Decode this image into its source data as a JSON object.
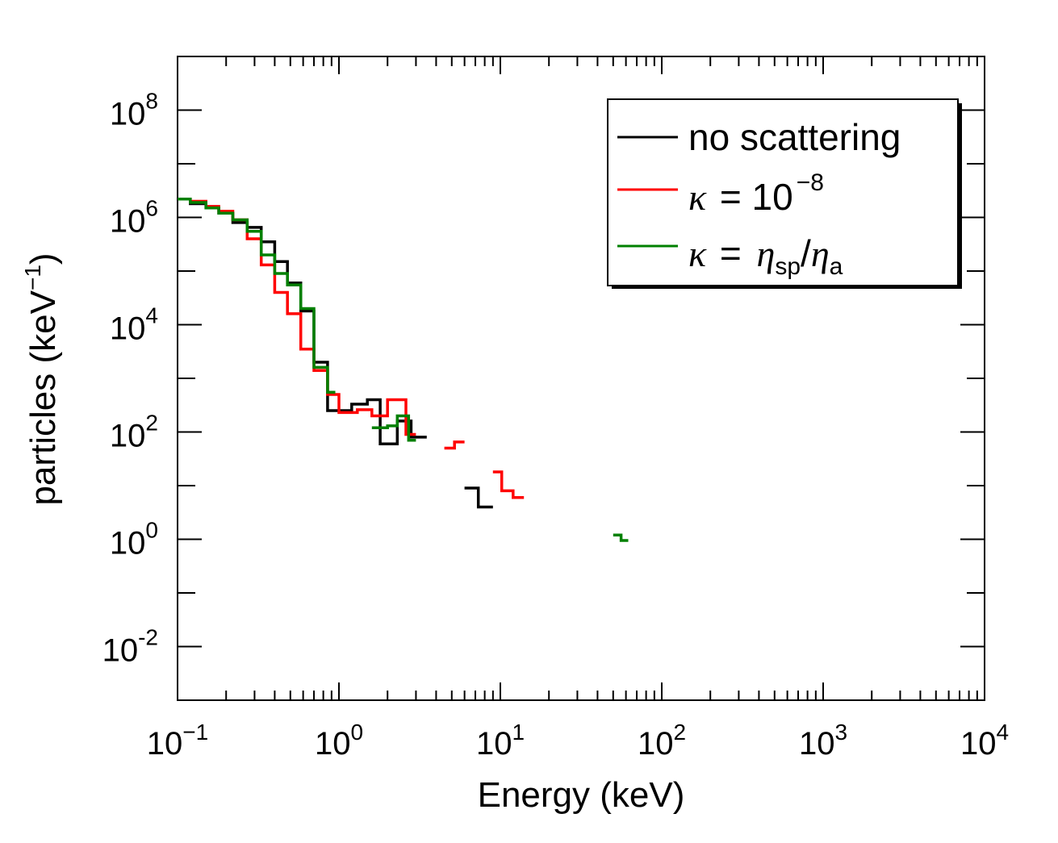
{
  "chart_data": {
    "type": "line",
    "step": true,
    "xscale": "log",
    "yscale": "log",
    "xlim": [
      0.1,
      10000
    ],
    "ylim": [
      0.001,
      1000000000
    ],
    "xlabel": "Energy (keV)",
    "ylabel": "particles (keV",
    "ylabel_exp": "−1",
    "ylabel_close": ")",
    "x_ticks": [
      {
        "base": "10",
        "exp": "−1",
        "value": 0.1
      },
      {
        "base": "10",
        "exp": "0",
        "value": 1
      },
      {
        "base": "10",
        "exp": "1",
        "value": 10
      },
      {
        "base": "10",
        "exp": "2",
        "value": 100
      },
      {
        "base": "10",
        "exp": "3",
        "value": 1000
      },
      {
        "base": "10",
        "exp": "4",
        "value": 10000
      }
    ],
    "y_ticks": [
      {
        "base": "10",
        "exp": "-2",
        "value": 0.01
      },
      {
        "base": "10",
        "exp": "0",
        "value": 1
      },
      {
        "base": "10",
        "exp": "2",
        "value": 100
      },
      {
        "base": "10",
        "exp": "4",
        "value": 10000
      },
      {
        "base": "10",
        "exp": "6",
        "value": 1000000
      },
      {
        "base": "10",
        "exp": "8",
        "value": 100000000
      }
    ],
    "legend": {
      "placement": "top-right",
      "entries": [
        {
          "series": 0,
          "text": "no scattering"
        },
        {
          "series": 1,
          "symbol": "κ",
          "eq": "= 10",
          "exp": "−8"
        },
        {
          "series": 2,
          "symbol": "κ",
          "eq": "=",
          "num": "η",
          "num_sub": "sp",
          "den": "η",
          "den_sub": "a"
        }
      ]
    },
    "series": [
      {
        "name": "no scattering",
        "color": "#000000",
        "segments": [
          [
            [
              0.1,
              2200000
            ],
            [
              0.12,
              2200000
            ],
            [
              0.12,
              1800000
            ],
            [
              0.15,
              1800000
            ],
            [
              0.15,
              1500000
            ],
            [
              0.18,
              1500000
            ],
            [
              0.18,
              1200000
            ],
            [
              0.22,
              1200000
            ],
            [
              0.22,
              800000
            ],
            [
              0.27,
              800000
            ],
            [
              0.27,
              650000
            ],
            [
              0.33,
              650000
            ],
            [
              0.33,
              350000
            ],
            [
              0.4,
              350000
            ],
            [
              0.4,
              150000
            ],
            [
              0.48,
              150000
            ],
            [
              0.48,
              60000
            ],
            [
              0.58,
              60000
            ],
            [
              0.58,
              18000
            ],
            [
              0.7,
              18000
            ],
            [
              0.7,
              2000
            ],
            [
              0.85,
              2000
            ],
            [
              0.85,
              250
            ],
            [
              1.0,
              250
            ],
            [
              1.0,
              250
            ],
            [
              1.2,
              250
            ],
            [
              1.2,
              330
            ],
            [
              1.5,
              330
            ],
            [
              1.5,
              400
            ],
            [
              1.8,
              400
            ],
            [
              1.8,
              60
            ],
            [
              2.3,
              60
            ],
            [
              2.3,
              160
            ],
            [
              2.8,
              160
            ],
            [
              2.8,
              80
            ],
            [
              3.5,
              80
            ]
          ],
          [
            [
              6.0,
              9
            ],
            [
              7.3,
              9
            ],
            [
              7.3,
              4
            ],
            [
              9.0,
              4
            ]
          ]
        ]
      },
      {
        "name": "κ = 10^−8",
        "color": "#ff0000",
        "segments": [
          [
            [
              0.1,
              2200000
            ],
            [
              0.12,
              2200000
            ],
            [
              0.12,
              2000000
            ],
            [
              0.15,
              2000000
            ],
            [
              0.15,
              1600000
            ],
            [
              0.18,
              1600000
            ],
            [
              0.18,
              1300000
            ],
            [
              0.22,
              1300000
            ],
            [
              0.22,
              900000
            ],
            [
              0.27,
              900000
            ],
            [
              0.27,
              400000
            ],
            [
              0.33,
              400000
            ],
            [
              0.33,
              130000
            ],
            [
              0.4,
              130000
            ],
            [
              0.4,
              40000
            ],
            [
              0.48,
              40000
            ],
            [
              0.48,
              16000
            ],
            [
              0.58,
              16000
            ],
            [
              0.58,
              3500
            ],
            [
              0.7,
              3500
            ],
            [
              0.7,
              1400
            ],
            [
              0.85,
              1400
            ],
            [
              0.85,
              500
            ],
            [
              1.0,
              500
            ],
            [
              1.0,
              230
            ],
            [
              1.3,
              230
            ],
            [
              1.3,
              260
            ],
            [
              1.6,
              260
            ],
            [
              1.6,
              200
            ],
            [
              2.0,
              200
            ],
            [
              2.0,
              400
            ],
            [
              2.6,
              400
            ],
            [
              2.6,
              90
            ],
            [
              3.0,
              90
            ]
          ],
          [
            [
              4.5,
              50
            ],
            [
              5.2,
              50
            ],
            [
              5.2,
              65
            ],
            [
              6.0,
              65
            ]
          ],
          [
            [
              9.0,
              18
            ],
            [
              10.2,
              18
            ],
            [
              10.2,
              8
            ],
            [
              12.0,
              8
            ],
            [
              12.0,
              6
            ],
            [
              14.0,
              6
            ]
          ]
        ]
      },
      {
        "name": "κ = η_sp/η_a",
        "color": "#008000",
        "segments": [
          [
            [
              0.1,
              2200000
            ],
            [
              0.12,
              2200000
            ],
            [
              0.12,
              1900000
            ],
            [
              0.15,
              1900000
            ],
            [
              0.15,
              1500000
            ],
            [
              0.18,
              1500000
            ],
            [
              0.18,
              1200000
            ],
            [
              0.22,
              1200000
            ],
            [
              0.22,
              900000
            ],
            [
              0.27,
              900000
            ],
            [
              0.27,
              550000
            ],
            [
              0.33,
              550000
            ],
            [
              0.33,
              200000
            ],
            [
              0.4,
              200000
            ],
            [
              0.4,
              90000
            ],
            [
              0.48,
              90000
            ],
            [
              0.48,
              55000
            ],
            [
              0.58,
              55000
            ],
            [
              0.58,
              20000
            ],
            [
              0.7,
              20000
            ],
            [
              0.7,
              1600
            ],
            [
              0.85,
              1600
            ],
            [
              0.85,
              550
            ],
            [
              0.95,
              550
            ]
          ],
          [
            [
              1.6,
              120
            ],
            [
              2.0,
              120
            ],
            [
              2.0,
              130
            ],
            [
              2.3,
              130
            ],
            [
              2.3,
              200
            ],
            [
              2.7,
              200
            ],
            [
              2.7,
              70
            ],
            [
              3.0,
              70
            ]
          ],
          [
            [
              50,
              1.2
            ],
            [
              56,
              1.2
            ],
            [
              56,
              0.95
            ],
            [
              62,
              0.95
            ]
          ]
        ]
      }
    ]
  }
}
